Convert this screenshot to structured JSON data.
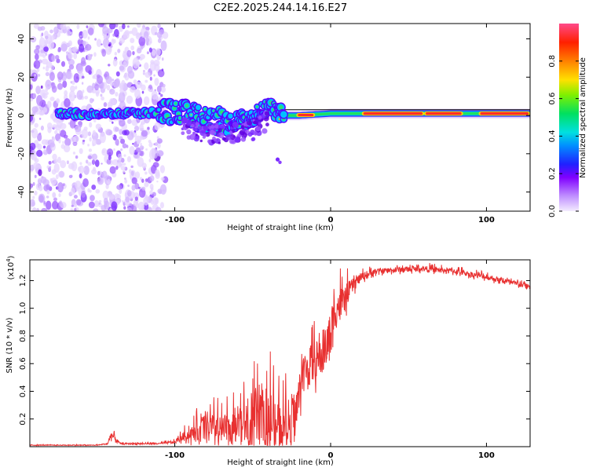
{
  "page_title": "C2E2.2025.244.14.16.E27",
  "colors": {
    "line": "#e83030",
    "axis": "#000000",
    "colormap": [
      "#f0e6ff",
      "#c8a0ff",
      "#7a2bff",
      "#2020ff",
      "#00a0ff",
      "#00e0d0",
      "#00e040",
      "#a0f000",
      "#ffe000",
      "#ff8000",
      "#ff2020",
      "#ff60a0"
    ]
  },
  "chart_data": [
    {
      "type": "heatmap",
      "name": "spectrogram",
      "xlabel": "Height of straight line (km)",
      "ylabel": "Frequency (Hz)",
      "xlim": [
        -193,
        128
      ],
      "ylim": [
        -50,
        48
      ],
      "xticks": [
        -100,
        0,
        100
      ],
      "xtick_labels": [
        "-100",
        "0",
        "100"
      ],
      "yticks": [
        -40,
        -20,
        0,
        20,
        40
      ],
      "ytick_labels": [
        "-40",
        "-20",
        "0",
        "20",
        "40"
      ],
      "colorbar": {
        "label": "Normalized spectral amplitude",
        "range": [
          0,
          1
        ],
        "ticks": [
          0,
          0.2,
          0.4,
          0.6,
          0.8
        ],
        "tick_labels": [
          "0.0",
          "0.2",
          "0.4",
          "0.6",
          "0.8"
        ]
      },
      "band": {
        "center_hz": [
          [
            -172,
            1
          ],
          [
            -120,
            1
          ],
          [
            -110,
            2
          ],
          [
            -95,
            1
          ],
          [
            -80,
            -2
          ],
          [
            -65,
            -3
          ],
          [
            -50,
            -1
          ],
          [
            -40,
            5
          ],
          [
            -30,
            0
          ],
          [
            -20,
            0
          ],
          [
            0,
            1
          ],
          [
            40,
            1
          ],
          [
            100,
            1
          ],
          [
            128,
            1
          ]
        ],
        "strong_segments_km": [
          [
            -22,
            -10
          ],
          [
            20,
            60
          ],
          [
            60,
            85
          ],
          [
            95,
            128
          ]
        ]
      },
      "isolated_blip": {
        "x_km": -34,
        "y_hz": -23
      },
      "noise_region_km": [
        -193,
        -106
      ]
    },
    {
      "type": "line",
      "name": "snr",
      "xlabel": "Height of straight line (km)",
      "ylabel": "SNR (10 * v/v)",
      "y_multiplier_label": "(x10",
      "y_multiplier_exp": "4",
      "y_multiplier_close": ")",
      "xlim": [
        -193,
        128
      ],
      "ylim": [
        0,
        1.35
      ],
      "xticks": [
        -100,
        0,
        100
      ],
      "xtick_labels": [
        "-100",
        "0",
        "100"
      ],
      "yticks": [
        0.2,
        0.4,
        0.6,
        0.8,
        1.0,
        1.2
      ],
      "ytick_labels": [
        "0.2",
        "0.4",
        "0.6",
        "0.8",
        "1.0",
        "1.2"
      ],
      "envelope": {
        "x": [
          -193,
          -150,
          -143,
          -141,
          -135,
          -110,
          -100,
          -95,
          -88,
          -80,
          -70,
          -62,
          -55,
          -45,
          -38,
          -33,
          -28,
          -22,
          -18,
          -12,
          -6,
          -2,
          1,
          3,
          8,
          12,
          20,
          30,
          40,
          60,
          80,
          100,
          115,
          128
        ],
        "base": [
          0.01,
          0.01,
          0.02,
          0.08,
          0.02,
          0.02,
          0.03,
          0.06,
          0.08,
          0.1,
          0.08,
          0.1,
          0.12,
          0.14,
          0.12,
          0.08,
          0.1,
          0.2,
          0.5,
          0.55,
          0.6,
          0.7,
          0.8,
          0.95,
          1.0,
          1.12,
          1.22,
          1.26,
          1.27,
          1.28,
          1.26,
          1.22,
          1.18,
          1.15
        ],
        "amplitude": [
          0.005,
          0.005,
          0.01,
          0.06,
          0.01,
          0.01,
          0.02,
          0.06,
          0.12,
          0.25,
          0.2,
          0.28,
          0.32,
          0.42,
          0.5,
          0.45,
          0.35,
          0.35,
          0.25,
          0.3,
          0.25,
          0.3,
          0.35,
          0.3,
          0.25,
          0.12,
          0.06,
          0.04,
          0.04,
          0.04,
          0.04,
          0.04,
          0.04,
          0.04
        ]
      }
    }
  ]
}
